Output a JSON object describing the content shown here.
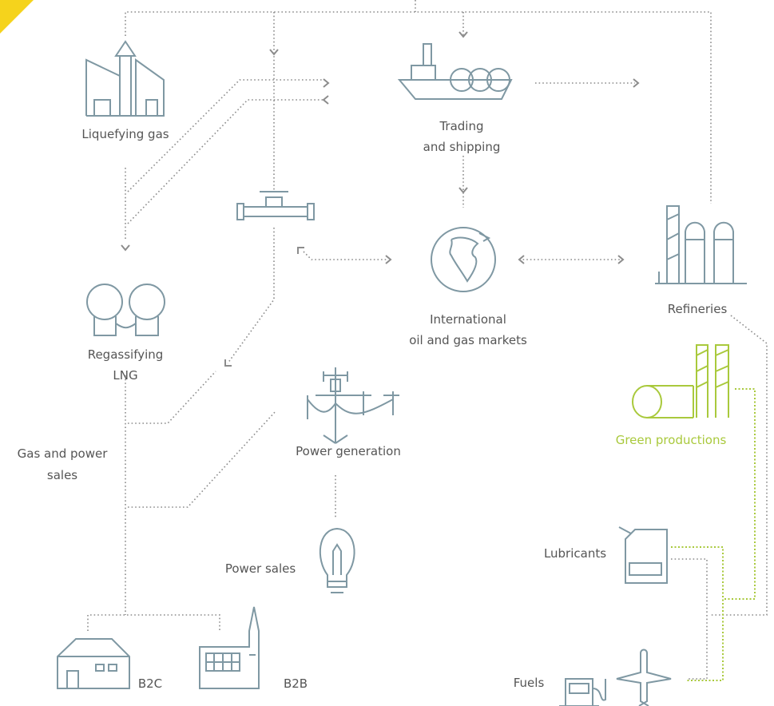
{
  "nodes": [
    {
      "lines": [
        "Liquefying gas"
      ]
    },
    {
      "lines": [
        "Trading",
        "and shipping"
      ]
    },
    {
      "lines": [
        "Regassifying",
        "LNG"
      ]
    },
    {
      "lines": [
        "International",
        "oil and gas markets"
      ]
    },
    {
      "lines": [
        "Refineries"
      ]
    },
    {
      "lines": [
        "Green productions"
      ]
    },
    {
      "lines": [
        "Gas and power",
        "sales"
      ]
    },
    {
      "lines": [
        "Power generation"
      ]
    },
    {
      "lines": [
        "Power sales"
      ]
    },
    {
      "lines": [
        "Lubricants"
      ]
    },
    {
      "lines": [
        "Fuels"
      ]
    },
    {
      "lines": [
        "B2C"
      ]
    },
    {
      "lines": [
        "B2B"
      ]
    }
  ]
}
